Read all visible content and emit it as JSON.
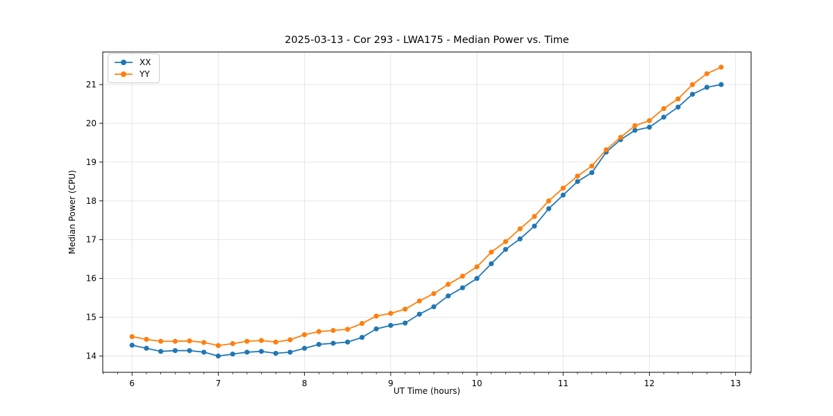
{
  "window_title": "2025-03-13 - Cor 293 - LWA175 - Median Power vs. Time",
  "chart_data": {
    "type": "line",
    "title": "2025-03-13 - Cor 293 - LWA175 - Median Power vs. Time",
    "xlabel": "UT Time (hours)",
    "ylabel": "Median Power (CPU)",
    "xlim": [
      5.66,
      13.18
    ],
    "ylim": [
      13.58,
      21.84
    ],
    "x_ticks": [
      6,
      7,
      8,
      9,
      10,
      11,
      12,
      13
    ],
    "y_ticks": [
      14,
      15,
      16,
      17,
      18,
      19,
      20,
      21
    ],
    "x_minor_step": 0.16667,
    "grid": true,
    "grid_color": "#e3e3e3",
    "legend_position": "upper left",
    "x": [
      6.0,
      6.167,
      6.333,
      6.5,
      6.667,
      6.833,
      7.0,
      7.167,
      7.333,
      7.5,
      7.667,
      7.833,
      8.0,
      8.167,
      8.333,
      8.5,
      8.667,
      8.833,
      9.0,
      9.167,
      9.333,
      9.5,
      9.667,
      9.833,
      10.0,
      10.167,
      10.333,
      10.5,
      10.667,
      10.833,
      11.0,
      11.167,
      11.333,
      11.5,
      11.667,
      11.833,
      12.0,
      12.167,
      12.333,
      12.5,
      12.667,
      12.833
    ],
    "series": [
      {
        "name": "XX",
        "color": "#1f77b4",
        "values": [
          14.28,
          14.2,
          14.12,
          14.14,
          14.14,
          14.1,
          14.0,
          14.05,
          14.1,
          14.12,
          14.07,
          14.1,
          14.2,
          14.3,
          14.33,
          14.36,
          14.48,
          14.7,
          14.79,
          14.85,
          15.08,
          15.27,
          15.55,
          15.76,
          16.0,
          16.38,
          16.75,
          17.02,
          17.35,
          17.8,
          18.15,
          18.5,
          18.73,
          19.26,
          19.58,
          19.82,
          19.9,
          20.16,
          20.42,
          20.75,
          20.93,
          21.0
        ]
      },
      {
        "name": "YY",
        "color": "#ff7f0e",
        "values": [
          14.5,
          14.43,
          14.38,
          14.38,
          14.39,
          14.35,
          14.27,
          14.32,
          14.38,
          14.4,
          14.36,
          14.42,
          14.55,
          14.63,
          14.66,
          14.69,
          14.84,
          15.03,
          15.1,
          15.21,
          15.42,
          15.61,
          15.85,
          16.06,
          16.3,
          16.68,
          16.95,
          17.28,
          17.6,
          18.0,
          18.33,
          18.64,
          18.9,
          19.32,
          19.64,
          19.94,
          20.07,
          20.38,
          20.63,
          21.0,
          21.28,
          21.45
        ]
      }
    ]
  }
}
